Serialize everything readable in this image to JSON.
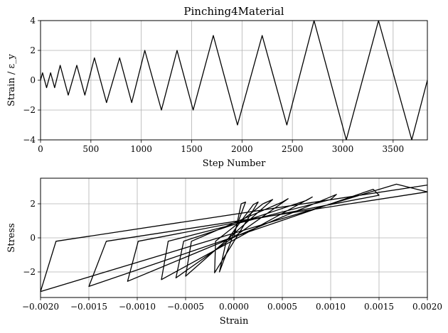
{
  "chart_data": [
    {
      "type": "line",
      "title": "Pinching4Material",
      "xlabel": "Step Number",
      "ylabel": "Strain / ε_y",
      "xlim": [
        0,
        3840
      ],
      "ylim": [
        -4,
        4
      ],
      "xticks": [
        0,
        500,
        1000,
        1500,
        2000,
        2500,
        3000,
        3500
      ],
      "xtick_labels": [
        "0",
        "500",
        "1000",
        "1500",
        "2000",
        "2500",
        "3000",
        "3500"
      ],
      "yticks": [
        -4,
        -2,
        0,
        2,
        4
      ],
      "ytick_labels": [
        "−4",
        "−2",
        "0",
        "2",
        "4"
      ],
      "grid": true,
      "series": [
        {
          "color": "#000000",
          "x": [
            0,
            20,
            60,
            100,
            140,
            195,
            275,
            360,
            440,
            535,
            655,
            785,
            905,
            1035,
            1200,
            1355,
            1515,
            1715,
            1955,
            2200,
            2445,
            2715,
            3035,
            3355,
            3685,
            3840
          ],
          "y": [
            0,
            0.5,
            -0.5,
            0.5,
            -0.5,
            1,
            -1,
            1,
            -1,
            1.5,
            -1.5,
            1.5,
            -1.5,
            2,
            -2,
            2,
            -2,
            3,
            -3,
            3,
            -3,
            4,
            -4,
            4,
            -4,
            0
          ]
        }
      ]
    },
    {
      "type": "line",
      "title": "",
      "xlabel": "Strain",
      "ylabel": "Stress",
      "xlim": [
        -0.002,
        0.002
      ],
      "ylim": [
        -3.5,
        3.5
      ],
      "xticks": [
        -0.002,
        -0.0015,
        -0.001,
        -0.0005,
        0,
        0.0005,
        0.001,
        0.0015,
        0.002
      ],
      "xtick_labels": [
        "−0.0020",
        "−0.0015",
        "−0.0010",
        "−0.0005",
        "0.0000",
        "0.0005",
        "0.0010",
        "0.0015",
        "0.0020"
      ],
      "yticks": [
        -2,
        0,
        2
      ],
      "ytick_labels": [
        "−2",
        "0",
        "2"
      ],
      "grid": true,
      "series": [
        {
          "color": "#000000",
          "x": [
            0,
            7.5e-05,
            0.00012,
            -0.00015,
            -8e-05,
            0.0002,
            0.00025,
            -0.0002,
            -0.00019,
            0.0003,
            0.0004,
            -0.0005,
            -0.00044,
            0.0005,
            0.00056,
            -0.0006,
            -0.00052,
            0.00075,
            0.00081,
            -0.00075,
            -0.00068,
            0.001,
            0.00106,
            -0.0011,
            -0.00099,
            0.0015,
            0.00144,
            -0.0015,
            -0.00132,
            0.002,
            0.00168,
            -0.002,
            -0.00184,
            0.002
          ],
          "y": [
            0,
            2.0,
            2.1,
            -2.0,
            -0.2,
            1.95,
            2.1,
            -2.05,
            -0.2,
            2.0,
            2.25,
            -2.25,
            -0.2,
            2.1,
            2.3,
            -2.35,
            -0.2,
            2.2,
            2.4,
            -2.45,
            -0.2,
            2.25,
            2.55,
            -2.55,
            -0.2,
            2.5,
            2.85,
            -2.85,
            -0.2,
            2.7,
            3.15,
            -3.15,
            -0.2,
            3.1
          ]
        }
      ]
    }
  ]
}
